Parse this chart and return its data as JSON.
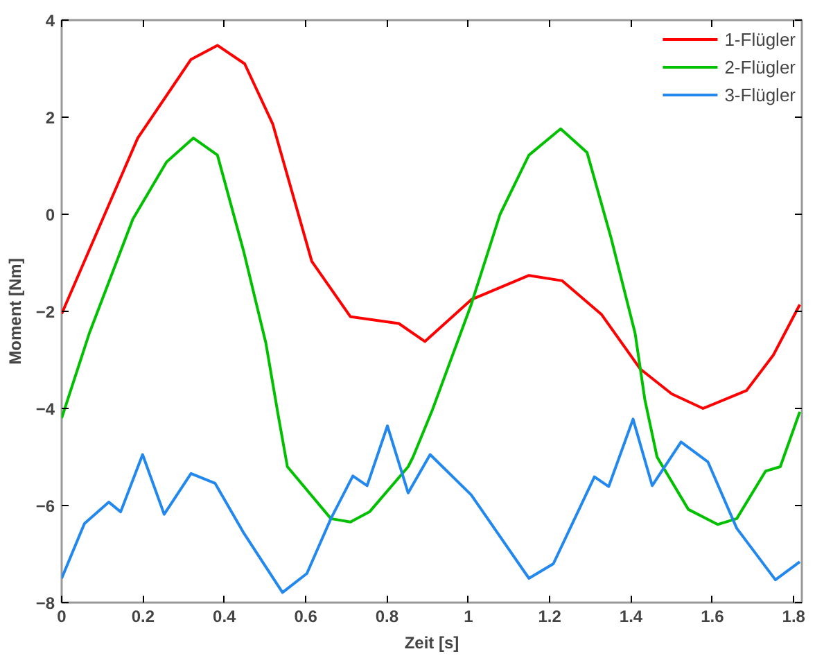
{
  "chart_data": {
    "type": "line",
    "xlabel": "Zeit [s]",
    "ylabel": "Moment [Nm]",
    "xlim": [
      0,
      1.82
    ],
    "ylim": [
      -8,
      4
    ],
    "xticks": [
      0,
      0.2,
      0.4,
      0.6,
      0.8,
      1,
      1.2,
      1.4,
      1.6,
      1.8
    ],
    "yticks": [
      -8,
      -6,
      -4,
      -2,
      0,
      2,
      4
    ],
    "grid": false,
    "legend": "top right",
    "marker": "none",
    "line_style": "solid",
    "series": [
      {
        "name": "1-Flügler",
        "color": "#ff0000",
        "x": [
          0,
          0.187,
          0.318,
          0.383,
          0.45,
          0.519,
          0.615,
          0.71,
          0.829,
          0.893,
          1.007,
          1.149,
          1.231,
          1.327,
          1.423,
          1.5,
          1.577,
          1.684,
          1.75,
          1.815
        ],
        "values": [
          -2.05,
          1.57,
          3.19,
          3.48,
          3.1,
          1.86,
          -0.97,
          -2.11,
          -2.25,
          -2.62,
          -1.76,
          -1.26,
          -1.37,
          -2.06,
          -3.19,
          -3.7,
          -4.0,
          -3.63,
          -2.9,
          -1.86
        ]
      },
      {
        "name": "2-Flügler",
        "color": "#00c000",
        "x": [
          0,
          0.068,
          0.175,
          0.258,
          0.324,
          0.383,
          0.448,
          0.502,
          0.532,
          0.555,
          0.662,
          0.71,
          0.757,
          0.852,
          0.864,
          0.912,
          1.007,
          1.078,
          1.149,
          1.227,
          1.292,
          1.351,
          1.41,
          1.434,
          1.464,
          1.541,
          1.613,
          1.66,
          1.731,
          1.767,
          1.815
        ],
        "values": [
          -4.2,
          -2.45,
          -0.1,
          1.08,
          1.57,
          1.22,
          -0.78,
          -2.65,
          -4.12,
          -5.2,
          -6.27,
          -6.34,
          -6.13,
          -5.2,
          -5.0,
          -4.02,
          -1.86,
          0,
          1.22,
          1.76,
          1.27,
          -0.49,
          -2.45,
          -3.82,
          -5.0,
          -6.08,
          -6.39,
          -6.27,
          -5.29,
          -5.2,
          -4.07
        ]
      },
      {
        "name": "3-Flügler",
        "color": "#2288ee",
        "x": [
          0,
          0.056,
          0.116,
          0.145,
          0.199,
          0.252,
          0.318,
          0.377,
          0.448,
          0.543,
          0.603,
          0.662,
          0.716,
          0.751,
          0.801,
          0.852,
          0.906,
          1.007,
          1.149,
          1.209,
          1.31,
          1.345,
          1.405,
          1.452,
          1.523,
          1.589,
          1.66,
          1.755,
          1.815
        ],
        "values": [
          -7.5,
          -6.37,
          -5.93,
          -6.13,
          -4.95,
          -6.18,
          -5.34,
          -5.54,
          -6.57,
          -7.79,
          -7.4,
          -6.27,
          -5.39,
          -5.59,
          -4.36,
          -5.74,
          -4.95,
          -5.78,
          -7.5,
          -7.2,
          -5.41,
          -5.61,
          -4.22,
          -5.59,
          -4.69,
          -5.1,
          -6.47,
          -7.53,
          -7.16
        ]
      }
    ]
  }
}
